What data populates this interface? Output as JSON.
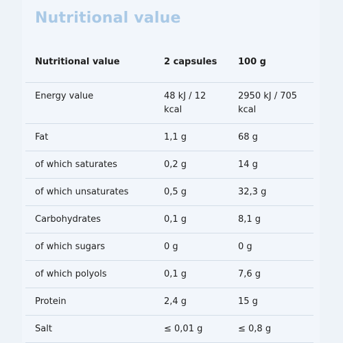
{
  "title": "Nutritional value",
  "table": {
    "headers": [
      "Nutritional value",
      "2 capsules",
      "100 g"
    ],
    "rows": [
      [
        "Energy value",
        "48 kJ / 12 kcal",
        "2950 kJ / 705 kcal"
      ],
      [
        "Fat",
        "1,1 g",
        "68 g"
      ],
      [
        "of which saturates",
        "0,2 g",
        "14 g"
      ],
      [
        "of which unsaturates",
        "0,5 g",
        "32,3 g"
      ],
      [
        "Carbohydrates",
        "0,1 g",
        "8,1 g"
      ],
      [
        "of which sugars",
        "0 g",
        "0 g"
      ],
      [
        "of which polyols",
        "0,1 g",
        "7,6 g"
      ],
      [
        "Protein",
        "2,4 g",
        "15 g"
      ],
      [
        "Salt",
        "≤ 0,01 g",
        "≤ 0,8 g"
      ]
    ]
  }
}
